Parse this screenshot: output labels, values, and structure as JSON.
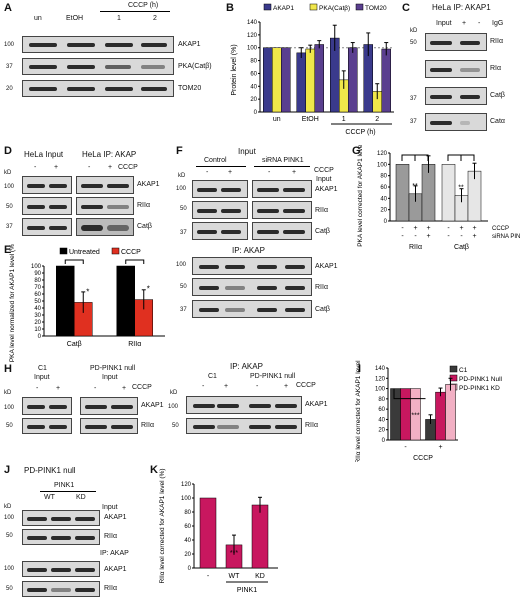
{
  "panels": {
    "A": {
      "letter": "A",
      "lanes": [
        "un",
        "EtOH",
        "1",
        "2"
      ],
      "cccp_header": "CCCP (h)",
      "bands": [
        "AKAP1",
        "PKA(Catβ)",
        "TOM20"
      ],
      "markers": [
        "100",
        "37",
        "20"
      ]
    },
    "B": {
      "letter": "B",
      "ylabel": "Protein level (%)",
      "xlabel": "CCCP (h)",
      "yticks": [
        "0",
        "20",
        "40",
        "60",
        "80",
        "100",
        "120",
        "140"
      ],
      "legend": [
        "AKAP1",
        "PKA(Catβ)",
        "TOM20"
      ],
      "colors": [
        "#3a3a8c",
        "#f0e64a",
        "#5a3f8f"
      ],
      "chart_data": {
        "type": "bar",
        "categories": [
          "un",
          "EtOH",
          "1",
          "2"
        ],
        "ylim": [
          0,
          140
        ],
        "series": [
          {
            "name": "AKAP1",
            "values": [
              100,
              92,
              115,
              105
            ],
            "errors": [
              0,
              8,
              20,
              18
            ]
          },
          {
            "name": "PKA(Catβ)",
            "values": [
              100,
              98,
              50,
              32
            ],
            "errors": [
              0,
              6,
              14,
              12
            ]
          },
          {
            "name": "TOM20",
            "values": [
              100,
              105,
              100,
              98
            ],
            "errors": [
              0,
              6,
              8,
              10
            ]
          }
        ]
      }
    },
    "C": {
      "letter": "C",
      "title": "HeLa IP: AKAP1",
      "cols": [
        "Input",
        "+",
        "-",
        "IgG"
      ],
      "bands": [
        "RIIα",
        "RIα",
        "Catβ",
        "Catα"
      ],
      "markers": [
        "kD",
        "50",
        "37",
        "37"
      ]
    },
    "D": {
      "letter": "D",
      "left_title": "HeLa Input",
      "right_title": "HeLa IP: AKAP",
      "cccp": "CCCP",
      "signs": [
        "-",
        "+",
        "-",
        "+"
      ],
      "bands": [
        "AKAP1",
        "RIIα",
        "Catβ"
      ],
      "markers": [
        "kD",
        "100",
        "50",
        "37"
      ]
    },
    "E": {
      "letter": "E",
      "ylabel": "PKA level normalized for AKAP1 level (%)",
      "legend": [
        "Untreated",
        "CCCP"
      ],
      "colors": [
        "#000000",
        "#e03020"
      ],
      "yticks": [
        "0",
        "10",
        "20",
        "30",
        "40",
        "50",
        "60",
        "70",
        "80",
        "90",
        "100"
      ],
      "stars": [
        "*",
        "*"
      ],
      "chart_data": {
        "type": "bar",
        "categories": [
          "Catβ",
          "RIIα"
        ],
        "ylim": [
          0,
          100
        ],
        "series": [
          {
            "name": "Untreated",
            "values": [
              100,
              100
            ]
          },
          {
            "name": "CCCP",
            "values": [
              48,
              52
            ],
            "errors": [
              15,
              14
            ]
          }
        ]
      }
    },
    "F": {
      "letter": "F",
      "input_title": "Input",
      "groups": [
        "Control",
        "siRNA PINK1"
      ],
      "cccp": "CCCP",
      "signs": [
        "-",
        "+",
        "-",
        "+"
      ],
      "input_label": "Input",
      "ip_title": "IP: AKAP",
      "bands": [
        "AKAP1",
        "RIIα",
        "Catβ"
      ],
      "markers": [
        "kD",
        "100",
        "50",
        "37"
      ]
    },
    "G": {
      "letter": "G",
      "ylabel": "PKA level corrected for AKAP1 level (%)",
      "yticks": [
        "0",
        "20",
        "40",
        "60",
        "80",
        "100",
        "120"
      ],
      "row_labels": [
        "CCCP",
        "siRNA PINK1"
      ],
      "row1": [
        "-",
        "+",
        "+",
        "-",
        "+",
        "+"
      ],
      "row2": [
        "-",
        "-",
        "+",
        "-",
        "-",
        "+"
      ],
      "groups": [
        "RIIα",
        "Catβ"
      ],
      "stars": [
        "**",
        "**"
      ],
      "colors": [
        "#9a9a9a",
        "#e6e6e6"
      ],
      "chart_data": {
        "type": "bar",
        "categories": [
          "RIIα -",
          "RIIα +",
          "RIIα + siRNA",
          "Catβ -",
          "Catβ +",
          "Catβ + siRNA"
        ],
        "ylim": [
          0,
          120
        ],
        "series": [
          {
            "values": [
              100,
              48,
              100,
              100,
              45,
              88
            ],
            "errors": [
              0,
              14,
              15,
              0,
              12,
              14
            ]
          }
        ]
      }
    },
    "H": {
      "letter": "H",
      "c1_input": "C1",
      "c1_input2": "Input",
      "pd_input": "PD-PINK1 null",
      "pd_input2": "Input",
      "cccp": "CCCP",
      "signs": [
        "-",
        "+",
        "-",
        "+"
      ],
      "ip_title": "IP: AKAP",
      "ip_groups": [
        "C1",
        "PD-PINK1 null"
      ],
      "bands": [
        "AKAP1",
        "RIIα"
      ],
      "markers": [
        "kD",
        "100",
        "50"
      ]
    },
    "I": {
      "letter": "I",
      "ylabel": "RIIα level corrected for AKAP1 level (%)",
      "xlabel": "CCCP",
      "xcats": [
        "-",
        "+"
      ],
      "legend": [
        "C1",
        "PD-PINK1 Null",
        "PD-PINK1 KD"
      ],
      "colors": [
        "#3a3a3a",
        "#c8175f",
        "#f2b0c4"
      ],
      "yticks": [
        "0",
        "20",
        "40",
        "60",
        "80",
        "100",
        "120",
        "140"
      ],
      "stars": [
        "***"
      ],
      "chart_data": {
        "type": "bar",
        "categories": [
          "-",
          "+"
        ],
        "ylim": [
          0,
          140
        ],
        "series": [
          {
            "name": "C1",
            "values": [
              100,
              40
            ],
            "errors": [
              0,
              9
            ]
          },
          {
            "name": "PD-PINK1 Null",
            "values": [
              100,
              93
            ],
            "errors": [
              0,
              8
            ]
          },
          {
            "name": "PD-PINK1 KD",
            "values": [
              100,
              108
            ],
            "errors": [
              0,
              12
            ]
          }
        ]
      }
    },
    "J": {
      "letter": "J",
      "title": "PD-PINK1 null",
      "pink": "PINK1",
      "cols": [
        "WT",
        "KD"
      ],
      "input": "Input",
      "ip": "IP: AKAP",
      "bands": [
        "AKAP1",
        "RIIα"
      ],
      "markers": [
        "kD",
        "100",
        "50",
        "100",
        "50"
      ]
    },
    "K": {
      "letter": "K",
      "ylabel": "RIIα level corrected for AKAP1 level (%)",
      "xlabel": "PINK1",
      "yticks": [
        "0",
        "20",
        "40",
        "60",
        "80",
        "100",
        "120"
      ],
      "stars": [
        "***"
      ],
      "color": "#c8175f",
      "chart_data": {
        "type": "bar",
        "categories": [
          "-",
          "WT",
          "KD"
        ],
        "ylim": [
          0,
          120
        ],
        "series": [
          {
            "values": [
              100,
              33,
              90
            ],
            "errors": [
              0,
              14,
              11
            ]
          }
        ]
      }
    }
  }
}
